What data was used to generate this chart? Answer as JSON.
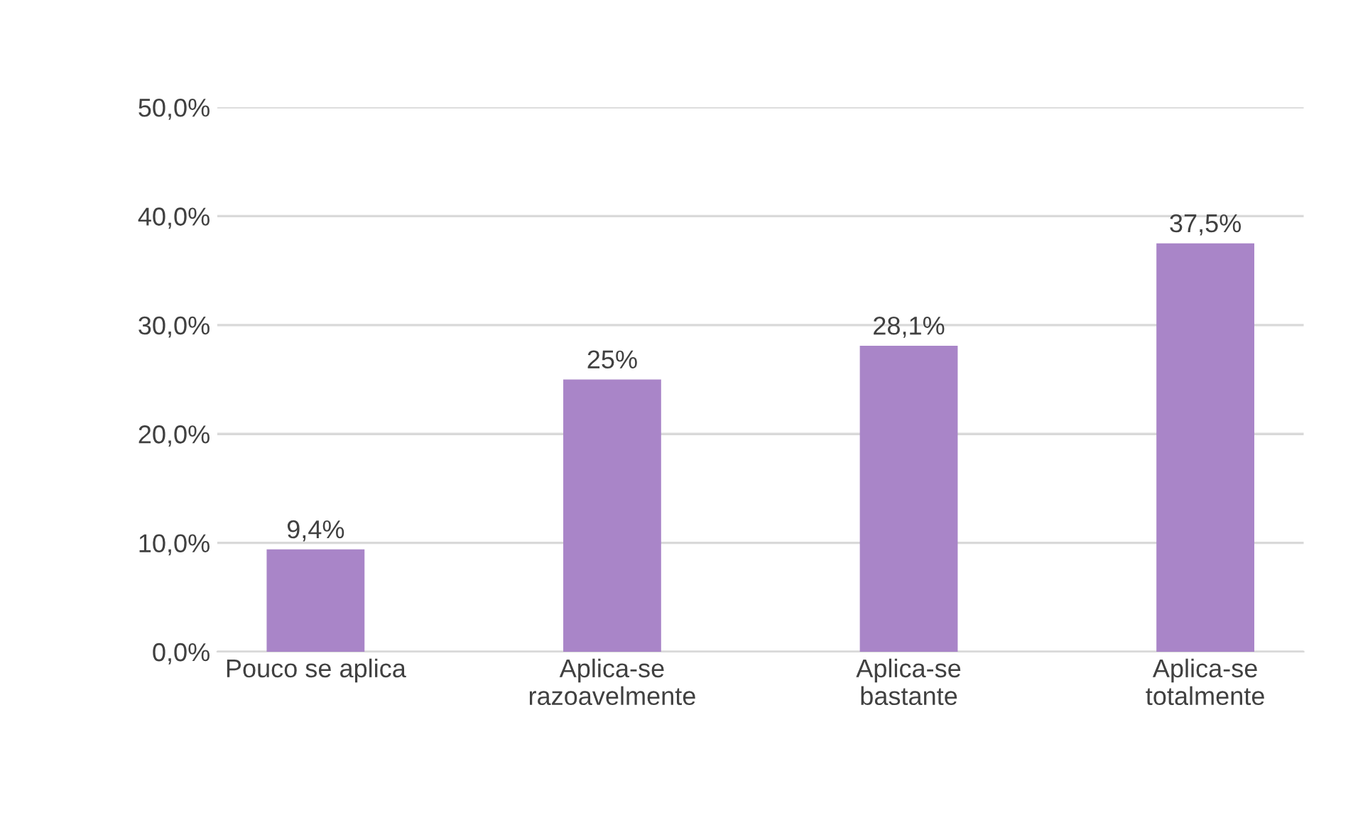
{
  "chart_data": {
    "type": "bar",
    "categories": [
      "Pouco se aplica",
      "Aplica-se\nrazoavelmente",
      "Aplica-se\nbastante",
      "Aplica-se\ntotalmente"
    ],
    "values": [
      9.4,
      25,
      28.1,
      37.5
    ],
    "value_labels": [
      "9,4%",
      "25%",
      "28,1%",
      "37,5%"
    ],
    "color": "#a985c8",
    "ylim": [
      0,
      50
    ],
    "yticks": [
      {
        "value": 0,
        "label": "0,0%"
      },
      {
        "value": 10,
        "label": "10,0%"
      },
      {
        "value": 20,
        "label": "20,0%"
      },
      {
        "value": 30,
        "label": "30,0%"
      },
      {
        "value": 40,
        "label": "40,0%"
      },
      {
        "value": 50,
        "label": "50,0%"
      }
    ],
    "grid": "y"
  }
}
